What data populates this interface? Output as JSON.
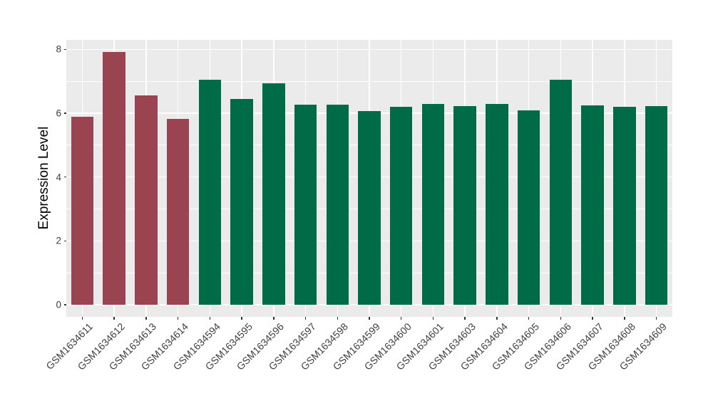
{
  "chart_data": {
    "type": "bar",
    "ylabel": "Expression Level",
    "ylim": [
      0,
      8.3
    ],
    "yticks": [
      0,
      2,
      4,
      6,
      8
    ],
    "yticks_minor": [
      1,
      3,
      5,
      7
    ],
    "grid": "white major + minor gridlines on gray panel, vertical major line at each category",
    "legend_position": "none",
    "categories": [
      "GSM1634611",
      "GSM1634612",
      "GSM1634613",
      "GSM1634614",
      "GSM1634594",
      "GSM1634595",
      "GSM1634596",
      "GSM1634597",
      "GSM1634598",
      "GSM1634599",
      "GSM1634600",
      "GSM1634601",
      "GSM1634603",
      "GSM1634604",
      "GSM1634605",
      "GSM1634606",
      "GSM1634607",
      "GSM1634608",
      "GSM1634609"
    ],
    "values": [
      5.88,
      7.91,
      6.55,
      5.82,
      7.05,
      6.44,
      6.94,
      6.26,
      6.26,
      6.06,
      6.2,
      6.28,
      6.22,
      6.28,
      6.09,
      7.05,
      6.25,
      6.21,
      6.22
    ],
    "bar_colors": [
      "#9A4452",
      "#9A4452",
      "#9A4452",
      "#9A4452",
      "#006B47",
      "#006B47",
      "#006B47",
      "#006B47",
      "#006B47",
      "#006B47",
      "#006B47",
      "#006B47",
      "#006B47",
      "#006B47",
      "#006B47",
      "#006B47",
      "#006B47",
      "#006B47",
      "#006B47"
    ]
  },
  "style_colors": {
    "group1_red": "#9A4452",
    "group2_green": "#006B47",
    "panel_background": "#EBEBEB",
    "gridline": "#FFFFFF",
    "axis_text": "#404040",
    "axis_title": "#000000"
  }
}
